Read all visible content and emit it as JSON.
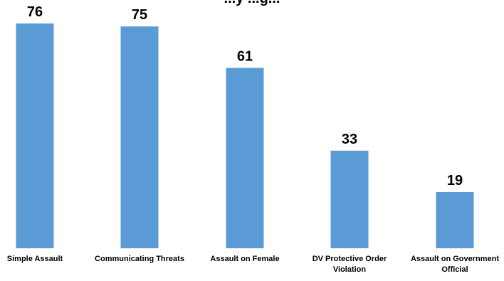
{
  "chart_data": {
    "type": "bar",
    "title_fragment": "...y ...g...",
    "categories": [
      "Simple Assault",
      "Communicating Threats",
      "Assault on Female",
      "DV Protective Order Violation",
      "Assault on Government Official"
    ],
    "values": [
      76,
      75,
      61,
      33,
      19
    ],
    "bar_color": "#5B9BD5",
    "data_labels": true,
    "ylim": [
      0,
      80
    ],
    "grid": false,
    "legend": "none"
  }
}
